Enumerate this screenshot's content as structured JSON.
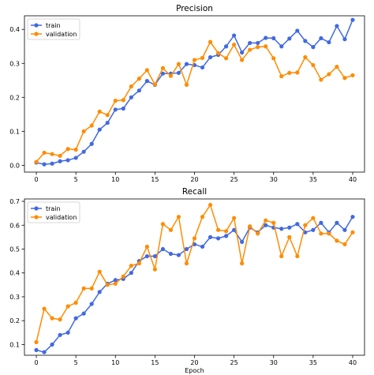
{
  "colors": {
    "train": "#4169e1",
    "validation": "#ff8c00"
  },
  "chart_data": [
    {
      "type": "line",
      "title": "Precision",
      "xlabel": "",
      "ylabel": "",
      "xlim": [
        -1.5,
        41.5
      ],
      "ylim": [
        -0.02,
        0.44
      ],
      "xticks": [
        0,
        5,
        10,
        15,
        20,
        25,
        30,
        35,
        40
      ],
      "yticks": [
        0.0,
        0.1,
        0.2,
        0.3,
        0.4
      ],
      "ytick_labels": [
        "0.0",
        "0.1",
        "0.2",
        "0.3",
        "0.4"
      ],
      "legend": "top-left",
      "grid": false,
      "x": [
        0,
        1,
        2,
        3,
        4,
        5,
        6,
        7,
        8,
        9,
        10,
        11,
        12,
        13,
        14,
        15,
        16,
        17,
        18,
        19,
        20,
        21,
        22,
        23,
        24,
        25,
        26,
        27,
        28,
        29,
        30,
        31,
        32,
        33,
        34,
        35,
        36,
        37,
        38,
        39,
        40
      ],
      "series": [
        {
          "name": "train",
          "color_key": "train",
          "values": [
            0.008,
            0.003,
            0.005,
            0.012,
            0.015,
            0.022,
            0.04,
            0.063,
            0.105,
            0.125,
            0.164,
            0.167,
            0.2,
            0.22,
            0.248,
            0.237,
            0.27,
            0.27,
            0.272,
            0.298,
            0.295,
            0.288,
            0.318,
            0.325,
            0.35,
            0.382,
            0.332,
            0.36,
            0.36,
            0.375,
            0.374,
            0.35,
            0.373,
            0.396,
            0.366,
            0.348,
            0.374,
            0.362,
            0.41,
            0.371,
            0.428
          ]
        },
        {
          "name": "validation",
          "color_key": "validation",
          "values": [
            0.01,
            0.037,
            0.033,
            0.028,
            0.048,
            0.046,
            0.1,
            0.117,
            0.158,
            0.148,
            0.19,
            0.192,
            0.232,
            0.255,
            0.28,
            0.238,
            0.286,
            0.263,
            0.298,
            0.237,
            0.31,
            0.316,
            0.363,
            0.33,
            0.315,
            0.355,
            0.31,
            0.34,
            0.348,
            0.35,
            0.315,
            0.262,
            0.272,
            0.273,
            0.318,
            0.295,
            0.252,
            0.268,
            0.29,
            0.257,
            0.265
          ]
        }
      ]
    },
    {
      "type": "line",
      "title": "Recall",
      "xlabel": "Epoch",
      "ylabel": "",
      "xlim": [
        -1.5,
        41.5
      ],
      "ylim": [
        0.055,
        0.71
      ],
      "xticks": [
        0,
        5,
        10,
        15,
        20,
        25,
        30,
        35,
        40
      ],
      "yticks": [
        0.1,
        0.2,
        0.3,
        0.4,
        0.5,
        0.6,
        0.7
      ],
      "ytick_labels": [
        "0.1",
        "0.2",
        "0.3",
        "0.4",
        "0.5",
        "0.6",
        "0.7"
      ],
      "legend": "top-left",
      "grid": false,
      "x": [
        0,
        1,
        2,
        3,
        4,
        5,
        6,
        7,
        8,
        9,
        10,
        11,
        12,
        13,
        14,
        15,
        16,
        17,
        18,
        19,
        20,
        21,
        22,
        23,
        24,
        25,
        26,
        27,
        28,
        29,
        30,
        31,
        32,
        33,
        34,
        35,
        36,
        37,
        38,
        39,
        40
      ],
      "series": [
        {
          "name": "train",
          "color_key": "train",
          "values": [
            0.077,
            0.068,
            0.1,
            0.14,
            0.15,
            0.21,
            0.23,
            0.27,
            0.32,
            0.355,
            0.37,
            0.375,
            0.4,
            0.45,
            0.47,
            0.47,
            0.5,
            0.48,
            0.475,
            0.5,
            0.52,
            0.51,
            0.55,
            0.545,
            0.555,
            0.58,
            0.53,
            0.59,
            0.57,
            0.6,
            0.59,
            0.585,
            0.59,
            0.605,
            0.57,
            0.58,
            0.61,
            0.57,
            0.61,
            0.58,
            0.635
          ]
        },
        {
          "name": "validation",
          "color_key": "validation",
          "values": [
            0.11,
            0.25,
            0.21,
            0.205,
            0.26,
            0.275,
            0.335,
            0.335,
            0.405,
            0.35,
            0.355,
            0.385,
            0.43,
            0.44,
            0.51,
            0.415,
            0.605,
            0.58,
            0.635,
            0.44,
            0.545,
            0.635,
            0.685,
            0.58,
            0.575,
            0.63,
            0.44,
            0.595,
            0.565,
            0.62,
            0.61,
            0.47,
            0.55,
            0.47,
            0.6,
            0.63,
            0.565,
            0.565,
            0.535,
            0.52,
            0.57
          ]
        }
      ]
    }
  ]
}
